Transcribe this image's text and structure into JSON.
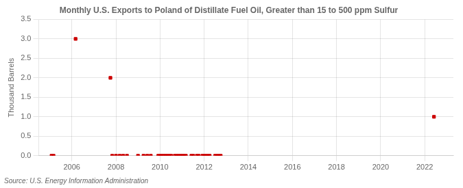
{
  "chart_data": {
    "type": "scatter",
    "title": "Monthly U.S. Exports to Poland of Distillate Fuel Oil, Greater than 15 to 500 ppm Sulfur",
    "ylabel": "Thousand Barrels",
    "annotations": [
      "Source: U.S. Energy Information Administration"
    ],
    "x": [
      2005.08,
      2005.17,
      2006.17,
      2007.75,
      2007.83,
      2008.0,
      2008.17,
      2008.33,
      2008.5,
      2009.0,
      2009.25,
      2009.42,
      2009.58,
      2009.92,
      2010.0,
      2010.08,
      2010.17,
      2010.25,
      2010.33,
      2010.42,
      2010.5,
      2010.67,
      2010.75,
      2010.83,
      2010.92,
      2011.0,
      2011.08,
      2011.17,
      2011.42,
      2011.5,
      2011.67,
      2011.75,
      2011.92,
      2012.0,
      2012.08,
      2012.17,
      2012.25,
      2012.5,
      2012.58,
      2012.67,
      2012.75,
      2022.42
    ],
    "values": [
      0.0,
      0.0,
      3.0,
      2.0,
      0.0,
      0.0,
      0.0,
      0.0,
      0.0,
      0.0,
      0.0,
      0.0,
      0.0,
      0.0,
      0.0,
      0.0,
      0.0,
      0.0,
      0.0,
      0.0,
      0.0,
      0.0,
      0.0,
      0.0,
      0.0,
      0.0,
      0.0,
      0.0,
      0.0,
      0.0,
      0.0,
      0.0,
      0.0,
      0.0,
      0.0,
      0.0,
      0.0,
      0.0,
      0.0,
      0.0,
      0.0,
      1.0
    ],
    "color": "#cc0000",
    "marker": "square",
    "xlim": [
      2004.5,
      2023.3
    ],
    "xticks": [
      2006,
      2008,
      2010,
      2012,
      2014,
      2016,
      2018,
      2020,
      2022
    ],
    "ylim": [
      0.0,
      3.5
    ],
    "yticks": [
      {
        "value": 0,
        "label": "0.0"
      },
      0.5,
      {
        "value": 1,
        "label": "1.0"
      },
      1.5,
      {
        "value": 2,
        "label": "2.0"
      },
      2.5,
      {
        "value": 3,
        "label": "3.0"
      },
      3.5
    ],
    "grid": true
  }
}
